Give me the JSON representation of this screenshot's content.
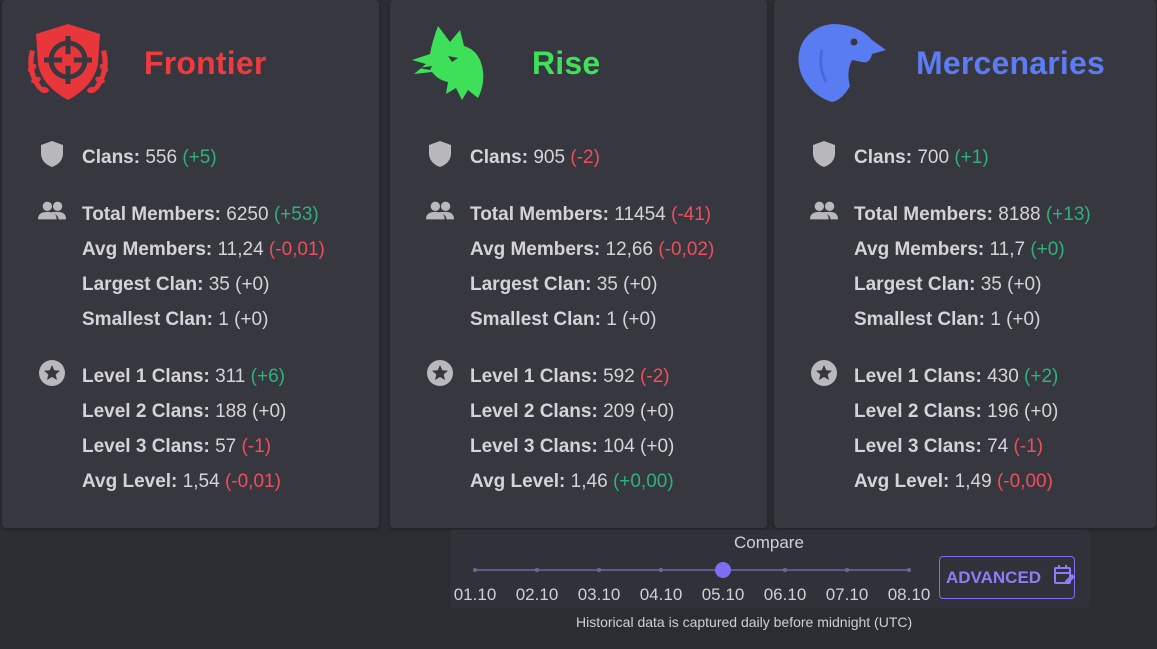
{
  "factions": [
    {
      "id": "frontier",
      "name": "Frontier",
      "color": "#f03a3f",
      "logo_icon": "crosshair-shield-icon",
      "clans": {
        "label": "Clans:",
        "value": "556",
        "delta": "(+5)",
        "delta_type": "pos"
      },
      "members": [
        {
          "label": "Total Members:",
          "value": "6250",
          "delta": "(+53)",
          "delta_type": "pos"
        },
        {
          "label": "Avg Members:",
          "value": "11,24",
          "delta": "(-0,01)",
          "delta_type": "neg"
        },
        {
          "label": "Largest Clan:",
          "value": "35",
          "delta": "(+0)",
          "delta_type": "neu"
        },
        {
          "label": "Smallest Clan:",
          "value": "1",
          "delta": "(+0)",
          "delta_type": "neu"
        }
      ],
      "levels": [
        {
          "label": "Level 1 Clans:",
          "value": "311",
          "delta": "(+6)",
          "delta_type": "pos"
        },
        {
          "label": "Level 2 Clans:",
          "value": "188",
          "delta": "(+0)",
          "delta_type": "neu"
        },
        {
          "label": "Level 3 Clans:",
          "value": "57",
          "delta": "(-1)",
          "delta_type": "neg"
        },
        {
          "label": "Avg Level:",
          "value": "1,54",
          "delta": "(-0,01)",
          "delta_type": "neg"
        }
      ]
    },
    {
      "id": "rise",
      "name": "Rise",
      "color": "#3fe05a",
      "logo_icon": "wolf-head-icon",
      "clans": {
        "label": "Clans:",
        "value": "905",
        "delta": "(-2)",
        "delta_type": "neg"
      },
      "members": [
        {
          "label": "Total Members:",
          "value": "11454",
          "delta": "(-41)",
          "delta_type": "neg"
        },
        {
          "label": "Avg Members:",
          "value": "12,66",
          "delta": "(-0,02)",
          "delta_type": "neg"
        },
        {
          "label": "Largest Clan:",
          "value": "35",
          "delta": "(+0)",
          "delta_type": "neu"
        },
        {
          "label": "Smallest Clan:",
          "value": "1",
          "delta": "(+0)",
          "delta_type": "neu"
        }
      ],
      "levels": [
        {
          "label": "Level 1 Clans:",
          "value": "592",
          "delta": "(-2)",
          "delta_type": "neg"
        },
        {
          "label": "Level 2 Clans:",
          "value": "209",
          "delta": "(+0)",
          "delta_type": "neu"
        },
        {
          "label": "Level 3 Clans:",
          "value": "104",
          "delta": "(+0)",
          "delta_type": "neu"
        },
        {
          "label": "Avg Level:",
          "value": "1,46",
          "delta": "(+0,00)",
          "delta_type": "pos"
        }
      ]
    },
    {
      "id": "mercenaries",
      "name": "Mercenaries",
      "color": "#5b7cf5",
      "logo_icon": "eagle-head-icon",
      "clans": {
        "label": "Clans:",
        "value": "700",
        "delta": "(+1)",
        "delta_type": "pos"
      },
      "members": [
        {
          "label": "Total Members:",
          "value": "8188",
          "delta": "(+13)",
          "delta_type": "pos"
        },
        {
          "label": "Avg Members:",
          "value": "11,7",
          "delta": "(+0)",
          "delta_type": "pos"
        },
        {
          "label": "Largest Clan:",
          "value": "35",
          "delta": "(+0)",
          "delta_type": "neu"
        },
        {
          "label": "Smallest Clan:",
          "value": "1",
          "delta": "(+0)",
          "delta_type": "neu"
        }
      ],
      "levels": [
        {
          "label": "Level 1 Clans:",
          "value": "430",
          "delta": "(+2)",
          "delta_type": "pos"
        },
        {
          "label": "Level 2 Clans:",
          "value": "196",
          "delta": "(+0)",
          "delta_type": "neu"
        },
        {
          "label": "Level 3 Clans:",
          "value": "74",
          "delta": "(-1)",
          "delta_type": "neg"
        },
        {
          "label": "Avg Level:",
          "value": "1,49",
          "delta": "(-0,00)",
          "delta_type": "neg"
        }
      ]
    }
  ],
  "section_icons": {
    "clans": "shield-icon",
    "members": "people-icon",
    "levels": "star-circle-icon"
  },
  "compare": {
    "title": "Compare",
    "dates": [
      "01.10",
      "02.10",
      "03.10",
      "04.10",
      "05.10",
      "06.10",
      "07.10",
      "08.10"
    ],
    "selected_index": 4,
    "advanced_label": "ADVANCED",
    "advanced_icon": "calendar-edit-icon",
    "accent": "#7b6ef2"
  },
  "footnote": "Historical data is captured daily before midnight (UTC)"
}
